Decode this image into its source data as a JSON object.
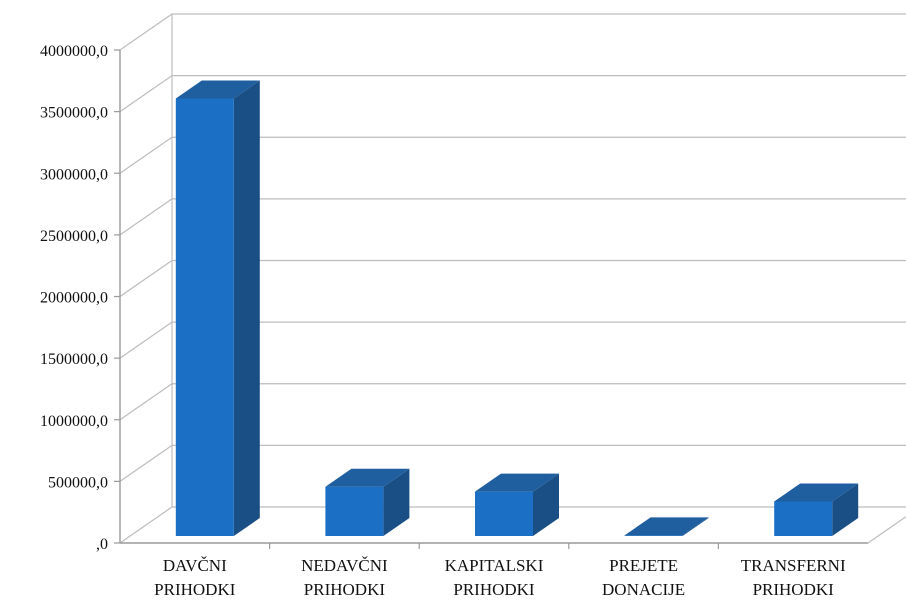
{
  "chart_data": {
    "type": "bar",
    "style": "3d-column",
    "categories": [
      [
        "DAVČNI",
        "PRIHODKI"
      ],
      [
        "NEDAVČNI",
        "PRIHODKI"
      ],
      [
        "KAPITALSKI",
        "PRIHODKI"
      ],
      [
        "PREJETE",
        "DONACIJE"
      ],
      [
        "TRANSFERNI",
        "PRIHODKI"
      ]
    ],
    "values": [
      3550000,
      400000,
      360000,
      5000,
      280000
    ],
    "ylim": [
      0,
      4000000
    ],
    "yticks": [
      0,
      500000,
      1000000,
      1500000,
      2000000,
      2500000,
      3000000,
      3500000,
      4000000
    ],
    "ytick_labels": [
      ",0",
      "500000,0",
      "1000000,0",
      "1500000,0",
      "2000000,0",
      "2500000,0",
      "3000000,0",
      "3500000,0",
      "4000000,0"
    ],
    "grid": true,
    "legend": "none",
    "colors": {
      "bar_front": "#1b6fc4",
      "bar_top": "#1f5f9f",
      "bar_side": "#1a4f86",
      "gridline": "#bdbdbd",
      "axis": "#9a9a9a"
    }
  }
}
